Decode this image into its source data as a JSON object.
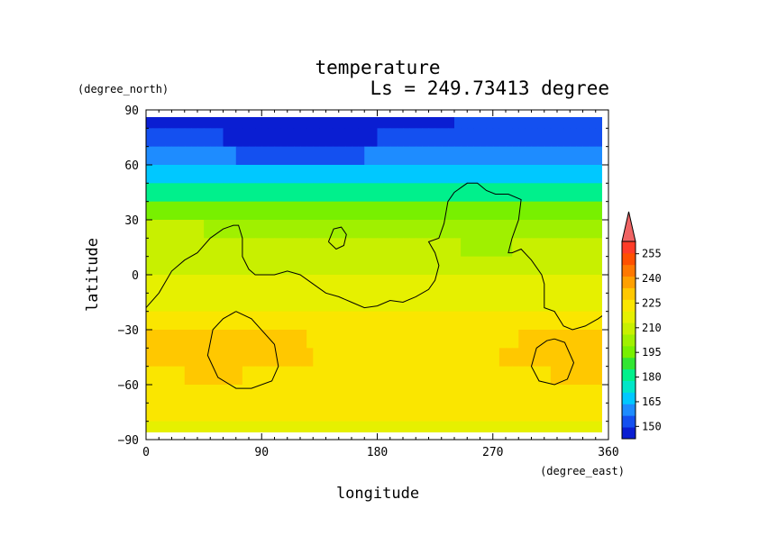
{
  "chart_data": {
    "type": "heatmap",
    "title": "temperature",
    "subtitle": "Ls = 249.73413 degree",
    "xlabel": "longitude",
    "ylabel": "latitude",
    "x_unit": "(degree_east)",
    "y_unit": "(degree_north)",
    "xlim": [
      0,
      360
    ],
    "ylim": [
      -90,
      90
    ],
    "x_ticks": [
      "0",
      "90",
      "180",
      "270",
      "360"
    ],
    "y_ticks": [
      "90",
      "60",
      "30",
      "0",
      "−30",
      "−60",
      "−90"
    ],
    "x_tick_values": [
      0,
      90,
      180,
      270,
      360
    ],
    "y_tick_values": [
      90,
      60,
      30,
      0,
      -30,
      -60,
      -90
    ],
    "colorbar": {
      "levels": [
        150,
        165,
        180,
        195,
        210,
        225,
        240,
        255
      ],
      "labels": [
        "150",
        "165",
        "180",
        "195",
        "210",
        "225",
        "240",
        "255"
      ],
      "min": 142.5,
      "max": 262.5,
      "extend": "max",
      "colors": [
        "#0a1ed2",
        "#1450f0",
        "#1e8cff",
        "#00c8ff",
        "#00e6c8",
        "#00f08c",
        "#32e632",
        "#78f000",
        "#a0f000",
        "#c8f000",
        "#e6f000",
        "#fae600",
        "#ffc800",
        "#ffa000",
        "#ff7800",
        "#ff5000",
        "#ff3c28",
        "#f06464"
      ]
    },
    "latitudes": [
      85,
      75,
      65,
      55,
      45,
      35,
      25,
      15,
      5,
      -5,
      -15,
      -25,
      -35,
      -45,
      -55,
      -65,
      -75,
      -85
    ],
    "longitude_knots": [
      0,
      45,
      90,
      135,
      180,
      225,
      270,
      315,
      360
    ],
    "temperature_profile": [
      148,
      152,
      160,
      172,
      186,
      200,
      210,
      214,
      216,
      220,
      224,
      228,
      232,
      232,
      230,
      228,
      226,
      224
    ],
    "contours": [
      {
        "name": "land boundary",
        "points": [
          [
            0,
            -18
          ],
          [
            10,
            -10
          ],
          [
            20,
            2
          ],
          [
            30,
            8
          ],
          [
            40,
            12
          ],
          [
            50,
            20
          ],
          [
            60,
            25
          ],
          [
            68,
            27
          ],
          [
            72,
            27
          ],
          [
            75,
            20
          ],
          [
            75,
            10
          ],
          [
            80,
            3
          ],
          [
            85,
            0
          ],
          [
            100,
            0
          ],
          [
            110,
            2
          ],
          [
            120,
            0
          ],
          [
            130,
            -5
          ],
          [
            140,
            -10
          ],
          [
            150,
            -12
          ],
          [
            160,
            -15
          ],
          [
            170,
            -18
          ],
          [
            180,
            -17
          ],
          [
            190,
            -14
          ],
          [
            200,
            -15
          ],
          [
            210,
            -12
          ],
          [
            220,
            -8
          ],
          [
            225,
            -3
          ],
          [
            228,
            5
          ],
          [
            225,
            12
          ],
          [
            220,
            18
          ],
          [
            228,
            20
          ],
          [
            232,
            28
          ],
          [
            235,
            40
          ],
          [
            240,
            45
          ],
          [
            250,
            50
          ],
          [
            258,
            50
          ],
          [
            265,
            46
          ],
          [
            272,
            44
          ],
          [
            282,
            44
          ],
          [
            292,
            41
          ],
          [
            290,
            30
          ],
          [
            285,
            20
          ],
          [
            282,
            12
          ],
          [
            285,
            12
          ],
          [
            292,
            14
          ],
          [
            300,
            8
          ],
          [
            308,
            0
          ],
          [
            310,
            -5
          ],
          [
            310,
            -18
          ],
          [
            318,
            -20
          ],
          [
            325,
            -28
          ],
          [
            332,
            -30
          ],
          [
            342,
            -28
          ],
          [
            352,
            -24
          ],
          [
            360,
            -20
          ]
        ]
      },
      {
        "name": "southern loop west",
        "points": [
          [
            70,
            -20
          ],
          [
            82,
            -24
          ],
          [
            100,
            -38
          ],
          [
            103,
            -50
          ],
          [
            98,
            -58
          ],
          [
            82,
            -62
          ],
          [
            70,
            -62
          ],
          [
            56,
            -56
          ],
          [
            48,
            -44
          ],
          [
            52,
            -30
          ],
          [
            60,
            -24
          ],
          [
            70,
            -20
          ]
        ]
      },
      {
        "name": "small island",
        "points": [
          [
            142,
            18
          ],
          [
            146,
            25
          ],
          [
            152,
            26
          ],
          [
            156,
            22
          ],
          [
            154,
            16
          ],
          [
            148,
            14
          ],
          [
            142,
            18
          ]
        ]
      },
      {
        "name": "southern loop east",
        "points": [
          [
            318,
            -35
          ],
          [
            326,
            -37
          ],
          [
            333,
            -48
          ],
          [
            328,
            -57
          ],
          [
            318,
            -60
          ],
          [
            306,
            -58
          ],
          [
            300,
            -50
          ],
          [
            304,
            -40
          ],
          [
            312,
            -36
          ],
          [
            318,
            -35
          ]
        ]
      }
    ]
  }
}
